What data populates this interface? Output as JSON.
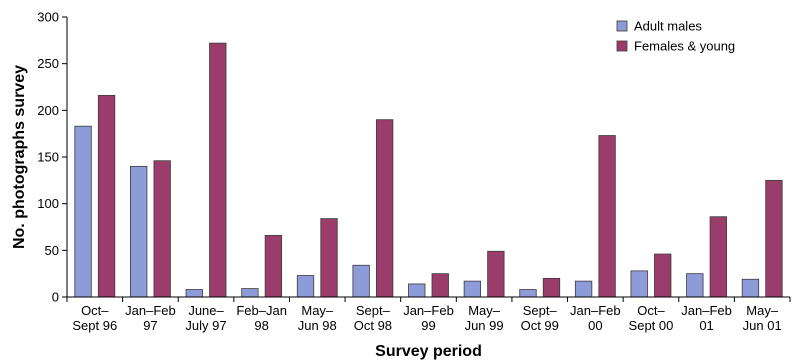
{
  "chart_data": {
    "type": "bar",
    "categories": [
      [
        "Oct–",
        "Sept 96"
      ],
      [
        "Jan–Feb",
        "97"
      ],
      [
        "June–",
        "July 97"
      ],
      [
        "Feb–Jan",
        "98"
      ],
      [
        "May–",
        "Jun 98"
      ],
      [
        "Sept–",
        "Oct 98"
      ],
      [
        "Jan–Feb",
        "99"
      ],
      [
        "May–",
        "Jun 99"
      ],
      [
        "Sept–",
        "Oct 99"
      ],
      [
        "Jan–Feb",
        "00"
      ],
      [
        "Oct–",
        "Sept 00"
      ],
      [
        "Jan–Feb",
        "01"
      ],
      [
        "May–",
        "Jun 01"
      ]
    ],
    "series": [
      {
        "name": "Adult males",
        "color": "#8e9bd9",
        "values": [
          183,
          140,
          8,
          9,
          23,
          34,
          14,
          17,
          8,
          17,
          28,
          25,
          19
        ]
      },
      {
        "name": "Females & young",
        "color": "#9b3d6b",
        "values": [
          216,
          146,
          272,
          66,
          84,
          190,
          25,
          49,
          20,
          173,
          46,
          86,
          125
        ]
      }
    ],
    "xlabel": "Survey period",
    "ylabel": "No. photographs survey",
    "ylim": [
      0,
      300
    ],
    "yticks": [
      0,
      50,
      100,
      150,
      200,
      250,
      300
    ],
    "legend_position": "top-right",
    "grid": false
  }
}
